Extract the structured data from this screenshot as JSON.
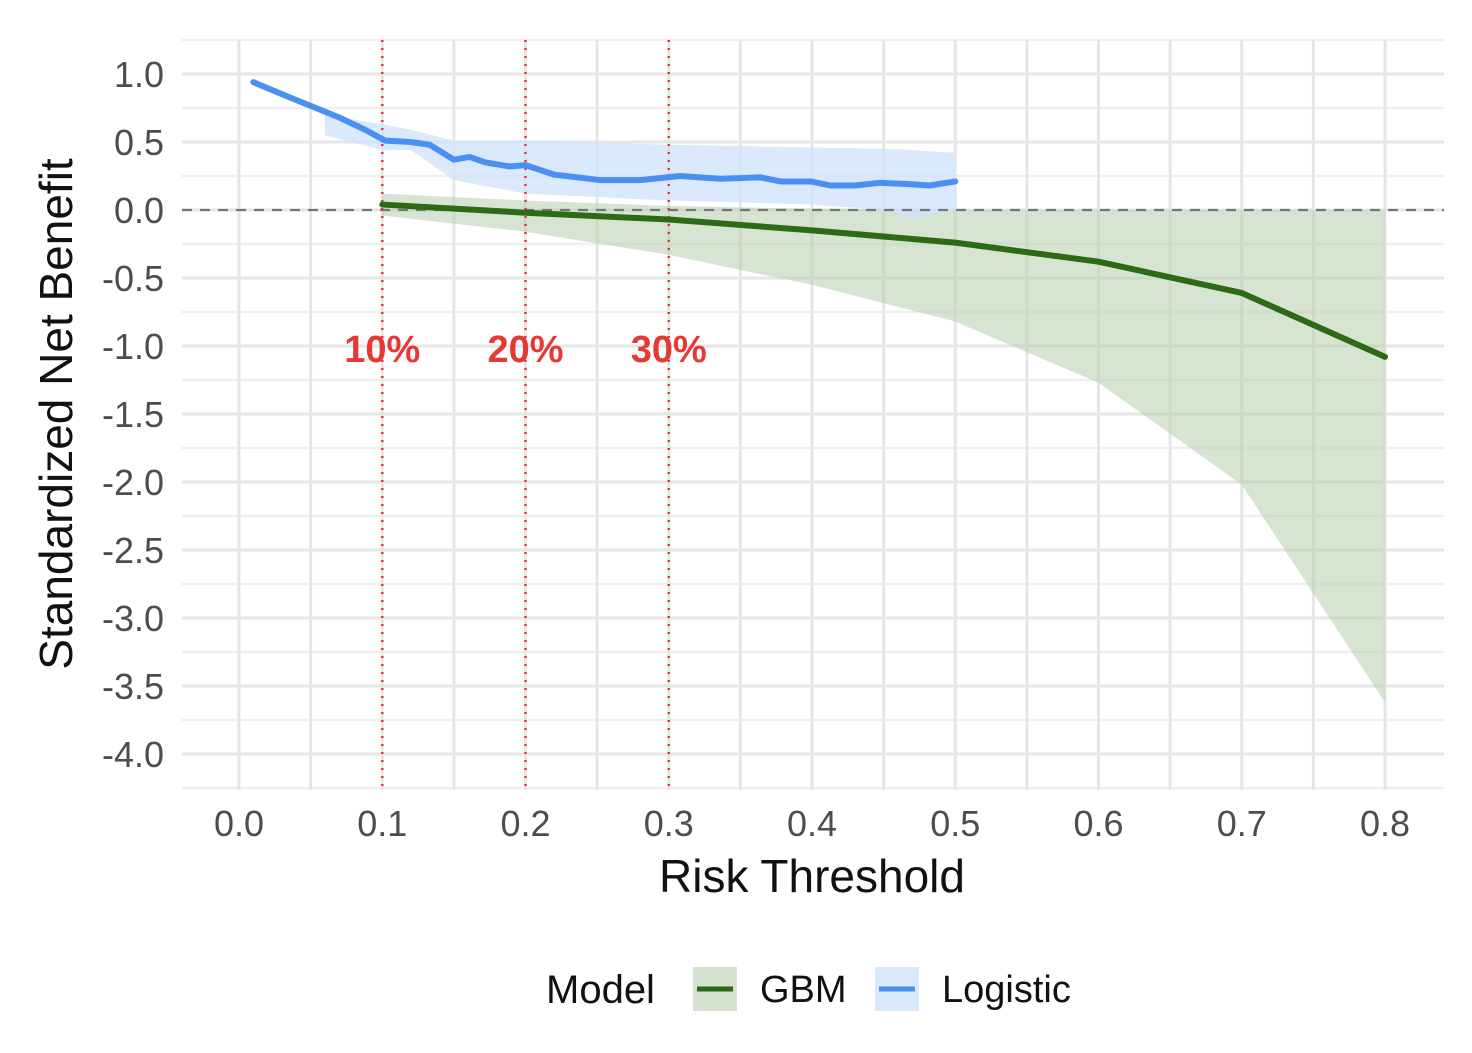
{
  "chart_data": {
    "type": "line",
    "title": "",
    "xlabel": "Risk Threshold",
    "ylabel": "Standardized Net Benefit",
    "xlim": [
      -0.04,
      0.84
    ],
    "ylim": [
      -4.25,
      1.25
    ],
    "x_ticks": [
      "0.0",
      "0.1",
      "0.2",
      "0.3",
      "0.4",
      "0.5",
      "0.6",
      "0.7",
      "0.8"
    ],
    "y_ticks": [
      "1.0",
      "0.5",
      "0.0",
      "-0.5",
      "-1.0",
      "-1.5",
      "-2.0",
      "-2.5",
      "-3.0",
      "-3.5",
      "-4.0"
    ],
    "grid": true,
    "reference_line_y": 0,
    "threshold_markers": [
      {
        "x": 0.1,
        "label": "10%"
      },
      {
        "x": 0.2,
        "label": "20%"
      },
      {
        "x": 0.3,
        "label": "30%"
      }
    ],
    "legend": {
      "title": "Model",
      "position": "bottom"
    },
    "series": [
      {
        "name": "GBM",
        "color": "#2d6a16",
        "fill": "#b5ceab",
        "x": [
          0.1,
          0.2,
          0.3,
          0.4,
          0.5,
          0.6,
          0.7,
          0.8
        ],
        "values": [
          0.04,
          -0.02,
          -0.07,
          -0.15,
          -0.24,
          -0.38,
          -0.61,
          -1.08
        ],
        "ci_upper": [
          0.12,
          0.07,
          0.03,
          0.01,
          0.0,
          0.0,
          0.0,
          0.0
        ],
        "ci_lower": [
          -0.04,
          -0.16,
          -0.33,
          -0.55,
          -0.82,
          -1.27,
          -2.02,
          -3.62
        ]
      },
      {
        "name": "Logistic",
        "color": "#4a90f0",
        "fill": "#cfe2fb",
        "x": [
          0.01,
          0.035,
          0.07,
          0.088,
          0.102,
          0.12,
          0.133,
          0.15,
          0.161,
          0.172,
          0.189,
          0.2,
          0.22,
          0.252,
          0.28,
          0.308,
          0.336,
          0.364,
          0.378,
          0.399,
          0.413,
          0.43,
          0.447,
          0.468,
          0.482,
          0.5
        ],
        "values": [
          0.94,
          0.83,
          0.68,
          0.59,
          0.51,
          0.5,
          0.48,
          0.37,
          0.39,
          0.35,
          0.32,
          0.33,
          0.26,
          0.22,
          0.22,
          0.25,
          0.23,
          0.24,
          0.21,
          0.21,
          0.18,
          0.18,
          0.2,
          0.19,
          0.18,
          0.21
        ],
        "ci_x": [
          0.06,
          0.1,
          0.12,
          0.15,
          0.2,
          0.3,
          0.4,
          0.45,
          0.47,
          0.5
        ],
        "ci_upper": [
          0.7,
          0.63,
          0.59,
          0.51,
          0.51,
          0.48,
          0.46,
          0.45,
          0.44,
          0.42
        ],
        "ci_lower": [
          0.55,
          0.44,
          0.44,
          0.22,
          0.12,
          0.07,
          0.04,
          0.0,
          -0.07,
          0.0
        ]
      }
    ]
  }
}
